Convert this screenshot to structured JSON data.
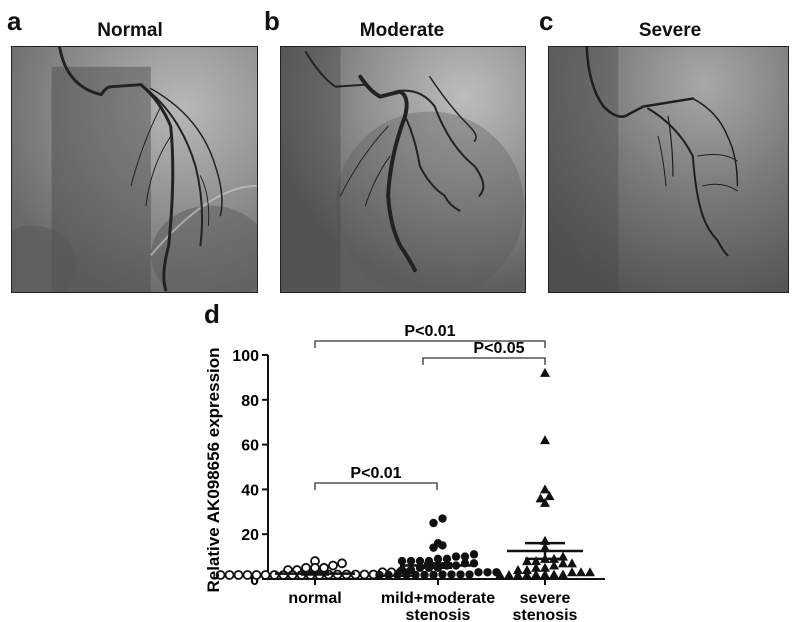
{
  "panels": [
    {
      "letter": "a",
      "title": "Normal"
    },
    {
      "letter": "b",
      "title": "Moderate"
    },
    {
      "letter": "c",
      "title": "Severe"
    }
  ],
  "chart_panel_letter": "d",
  "chart_data": {
    "type": "scatter",
    "title": "",
    "xlabel": "",
    "ylabel": "Relative AK098656 expression",
    "ylim": [
      0,
      100
    ],
    "yticks": [
      0,
      20,
      40,
      60,
      80,
      100
    ],
    "ytick_labels": [
      "0",
      "20",
      "40",
      "60",
      "80",
      "100"
    ],
    "categories": [
      "normal",
      "mild+moderate stenosis",
      "severe stenosis"
    ],
    "category_labels": [
      [
        "normal"
      ],
      [
        "mild+moderate",
        "stenosis"
      ],
      [
        "severe",
        "stenosis"
      ]
    ],
    "grid": false,
    "legend": null,
    "series": [
      {
        "name": "normal",
        "marker": "open-circle",
        "values": [
          8,
          7,
          6,
          5,
          5,
          5,
          4,
          4,
          3,
          3,
          3,
          3,
          2,
          2,
          2,
          2,
          2,
          2,
          1,
          1,
          1,
          1,
          1,
          1,
          1,
          0.5,
          0.5,
          0.5,
          0.5,
          0.5
        ],
        "mean": 2.4,
        "sem": 0.4
      },
      {
        "name": "mild+moderate stenosis",
        "marker": "filled-circle",
        "values": [
          27,
          25,
          16,
          15,
          14,
          11,
          10,
          10,
          9,
          9,
          8,
          8,
          8,
          8,
          7,
          7,
          6,
          6,
          5,
          5,
          5,
          4,
          4,
          3,
          3,
          3,
          2,
          2,
          2,
          2,
          1,
          1,
          1,
          1,
          1,
          1,
          1
        ],
        "mean": 6,
        "sem": 1
      },
      {
        "name": "severe stenosis",
        "marker": "filled-triangle",
        "values": [
          92,
          62,
          40,
          37,
          36,
          34,
          17,
          14,
          10,
          9,
          9,
          8,
          8,
          7,
          7,
          6,
          5,
          5,
          4,
          4,
          3,
          3,
          3,
          2,
          2,
          2,
          2,
          1,
          1,
          1,
          1
        ],
        "mean": 12.5,
        "sem": 3.5
      }
    ],
    "annotations": [
      {
        "text": "P<0.01",
        "from": "normal",
        "to": "severe stenosis",
        "level": "top"
      },
      {
        "text": "P<0.05",
        "from": "mild+moderate stenosis",
        "to": "severe stenosis",
        "level": "second"
      },
      {
        "text": "P<0.01",
        "from": "normal",
        "to": "mild+moderate stenosis",
        "level": "low"
      }
    ]
  }
}
